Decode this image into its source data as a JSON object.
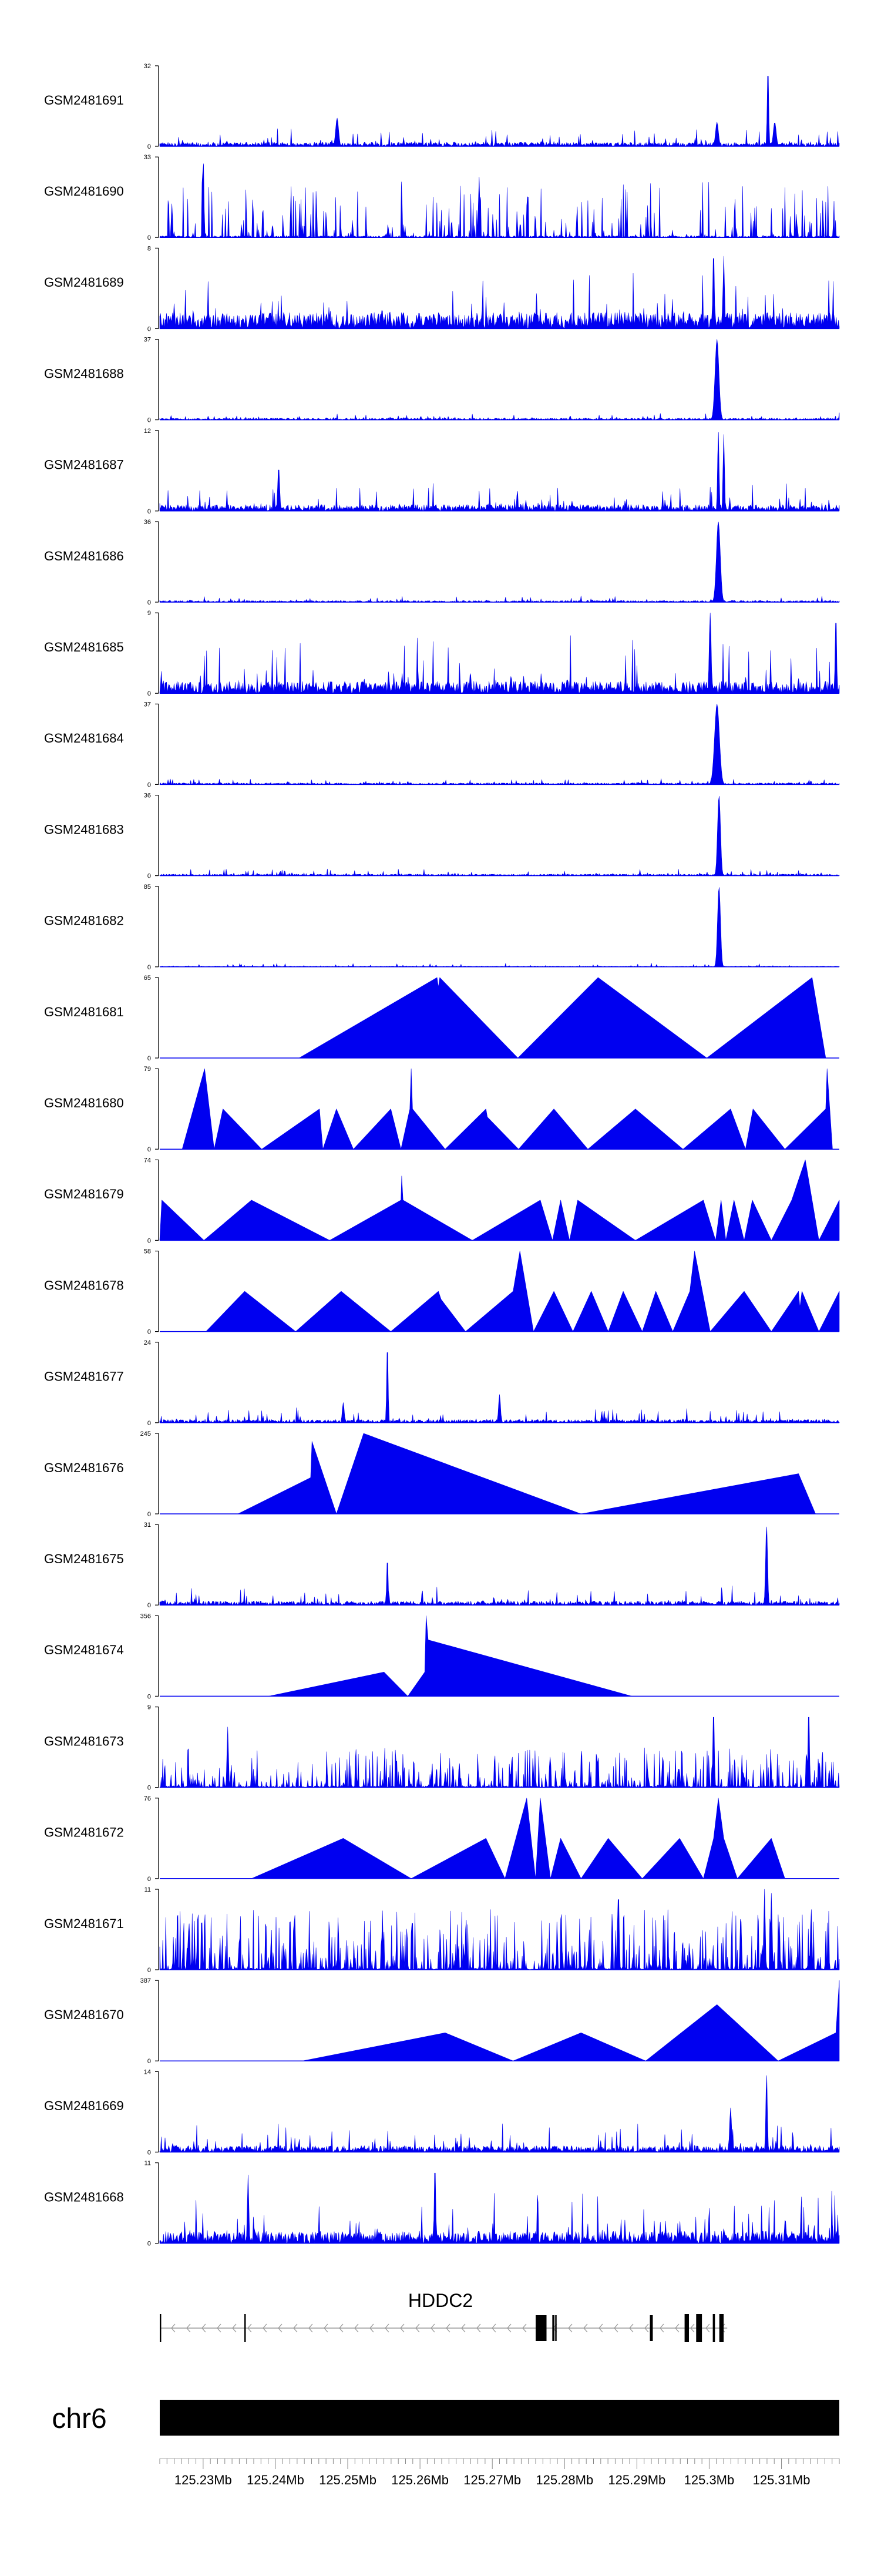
{
  "colors": {
    "signal": "#0000f0",
    "axis": "#000000",
    "background": "#ffffff"
  },
  "chart_data": {
    "type": "area",
    "title": "",
    "chromosome": "chr6",
    "gene": {
      "name": "HDDC2",
      "strand": "-"
    },
    "xlim": [
      125.224,
      125.318
    ],
    "xticks": [
      125.23,
      125.24,
      125.25,
      125.26,
      125.27,
      125.28,
      125.29,
      125.3,
      125.31
    ],
    "xtick_labels": [
      "125.23Mb",
      "125.24Mb",
      "125.25Mb",
      "125.26Mb",
      "125.27Mb",
      "125.28Mb",
      "125.29Mb",
      "125.3Mb",
      "125.31Mb"
    ],
    "tracks": [
      {
        "name": "GSM2481691",
        "ymax": 32,
        "pattern": "noise",
        "base": 0.05,
        "amp": 0.18,
        "peaks": [
          [
            0.261,
            0.35,
            0.003
          ],
          [
            0.82,
            0.3,
            0.003
          ],
          [
            0.895,
            1.0,
            0.0015
          ],
          [
            0.905,
            0.3,
            0.003
          ]
        ]
      },
      {
        "name": "GSM2481690",
        "ymax": 33,
        "pattern": "spiky",
        "density": 0.3,
        "amp": 0.7,
        "peaks": [
          [
            0.064,
            1.0,
            0.0015
          ],
          [
            0.47,
            0.75,
            0.0015
          ]
        ]
      },
      {
        "name": "GSM2481689",
        "ymax": 8,
        "pattern": "noise",
        "base": 0.2,
        "amp": 0.55,
        "peaks": [
          [
            0.815,
            1.0,
            0.0015
          ],
          [
            0.83,
            0.9,
            0.0015
          ]
        ]
      },
      {
        "name": "GSM2481688",
        "ymax": 37,
        "pattern": "noise",
        "base": 0.02,
        "amp": 0.07,
        "peaks": [
          [
            0.82,
            1.0,
            0.004
          ]
        ]
      },
      {
        "name": "GSM2481687",
        "ymax": 12,
        "pattern": "noise",
        "base": 0.08,
        "amp": 0.3,
        "peaks": [
          [
            0.822,
            1.0,
            0.0015
          ],
          [
            0.83,
            0.95,
            0.0015
          ],
          [
            0.175,
            0.55,
            0.002
          ]
        ]
      },
      {
        "name": "GSM2481686",
        "ymax": 36,
        "pattern": "noise",
        "base": 0.02,
        "amp": 0.06,
        "peaks": [
          [
            0.822,
            1.0,
            0.004
          ]
        ]
      },
      {
        "name": "GSM2481685",
        "ymax": 9,
        "pattern": "noise",
        "base": 0.15,
        "amp": 0.6,
        "peaks": [
          [
            0.81,
            1.0,
            0.002
          ],
          [
            0.995,
            1.0,
            0.0015
          ]
        ]
      },
      {
        "name": "GSM2481684",
        "ymax": 37,
        "pattern": "noise",
        "base": 0.02,
        "amp": 0.06,
        "peaks": [
          [
            0.82,
            1.0,
            0.005
          ]
        ]
      },
      {
        "name": "GSM2481683",
        "ymax": 36,
        "pattern": "noise",
        "base": 0.02,
        "amp": 0.08,
        "peaks": [
          [
            0.823,
            1.0,
            0.003
          ]
        ]
      },
      {
        "name": "GSM2481682",
        "ymax": 85,
        "pattern": "noise",
        "base": 0.01,
        "amp": 0.04,
        "peaks": [
          [
            0.823,
            1.0,
            0.003
          ]
        ]
      },
      {
        "name": "GSM2481681",
        "ymax": 65,
        "pattern": "points",
        "points": [
          [
            0.205,
            0
          ],
          [
            0.408,
            1.0
          ],
          [
            0.41,
            0.88
          ],
          [
            0.412,
            1.0
          ],
          [
            0.527,
            0
          ],
          [
            0.645,
            1.0
          ],
          [
            0.805,
            0
          ],
          [
            0.96,
            1.0
          ],
          [
            0.98,
            0
          ]
        ]
      },
      {
        "name": "GSM2481680",
        "ymax": 79,
        "pattern": "points",
        "points": [
          [
            0.033,
            0
          ],
          [
            0.066,
            1.0
          ],
          [
            0.08,
            0
          ],
          [
            0.093,
            0.5
          ],
          [
            0.15,
            0
          ],
          [
            0.235,
            0.5
          ],
          [
            0.24,
            0
          ],
          [
            0.26,
            0.5
          ],
          [
            0.285,
            0
          ],
          [
            0.34,
            0.5
          ],
          [
            0.355,
            0
          ],
          [
            0.368,
            0.5
          ],
          [
            0.37,
            1.0
          ],
          [
            0.372,
            0.5
          ],
          [
            0.42,
            0
          ],
          [
            0.48,
            0.5
          ],
          [
            0.482,
            0.4
          ],
          [
            0.528,
            0
          ],
          [
            0.58,
            0.5
          ],
          [
            0.63,
            0
          ],
          [
            0.7,
            0.5
          ],
          [
            0.77,
            0
          ],
          [
            0.84,
            0.5
          ],
          [
            0.862,
            0
          ],
          [
            0.873,
            0.5
          ],
          [
            0.92,
            0
          ],
          [
            0.98,
            0.5
          ],
          [
            0.982,
            1.0
          ],
          [
            0.99,
            0
          ]
        ]
      },
      {
        "name": "GSM2481679",
        "ymax": 74,
        "pattern": "points",
        "points": [
          [
            0,
            0
          ],
          [
            0.003,
            0.5
          ],
          [
            0.065,
            0
          ],
          [
            0.135,
            0.5
          ],
          [
            0.25,
            0
          ],
          [
            0.355,
            0.5
          ],
          [
            0.356,
            0.8
          ],
          [
            0.358,
            0.5
          ],
          [
            0.46,
            0
          ],
          [
            0.56,
            0.5
          ],
          [
            0.578,
            0
          ],
          [
            0.59,
            0.5
          ],
          [
            0.603,
            0
          ],
          [
            0.615,
            0.5
          ],
          [
            0.7,
            0
          ],
          [
            0.8,
            0.5
          ],
          [
            0.818,
            0
          ],
          [
            0.826,
            0.5
          ],
          [
            0.833,
            0
          ],
          [
            0.845,
            0.5
          ],
          [
            0.86,
            0
          ],
          [
            0.872,
            0.5
          ],
          [
            0.9,
            0
          ],
          [
            0.93,
            0.5
          ],
          [
            0.95,
            1.0
          ],
          [
            0.97,
            0
          ],
          [
            1.0,
            0.5
          ],
          [
            1.0,
            0
          ]
        ]
      },
      {
        "name": "GSM2481678",
        "ymax": 58,
        "pattern": "points",
        "points": [
          [
            0.068,
            0
          ],
          [
            0.125,
            0.5
          ],
          [
            0.2,
            0
          ],
          [
            0.267,
            0.5
          ],
          [
            0.34,
            0
          ],
          [
            0.41,
            0.5
          ],
          [
            0.414,
            0.4
          ],
          [
            0.45,
            0
          ],
          [
            0.52,
            0.5
          ],
          [
            0.53,
            1.0
          ],
          [
            0.55,
            0
          ],
          [
            0.58,
            0.5
          ],
          [
            0.608,
            0
          ],
          [
            0.635,
            0.5
          ],
          [
            0.66,
            0
          ],
          [
            0.682,
            0.5
          ],
          [
            0.71,
            0
          ],
          [
            0.73,
            0.5
          ],
          [
            0.755,
            0
          ],
          [
            0.78,
            0.5
          ],
          [
            0.787,
            1.0
          ],
          [
            0.81,
            0
          ],
          [
            0.86,
            0.5
          ],
          [
            0.9,
            0
          ],
          [
            0.94,
            0.5
          ],
          [
            0.942,
            0.3
          ],
          [
            0.945,
            0.5
          ],
          [
            0.97,
            0
          ],
          [
            1.0,
            0.5
          ],
          [
            1.0,
            0
          ]
        ]
      },
      {
        "name": "GSM2481677",
        "ymax": 24,
        "pattern": "noise",
        "base": 0.04,
        "amp": 0.15,
        "peaks": [
          [
            0.335,
            1.0,
            0.0015
          ],
          [
            0.27,
            0.25,
            0.002
          ],
          [
            0.5,
            0.35,
            0.002
          ]
        ]
      },
      {
        "name": "GSM2481676",
        "ymax": 245,
        "pattern": "points",
        "points": [
          [
            0.115,
            0
          ],
          [
            0.222,
            0.45
          ],
          [
            0.224,
            0.9
          ],
          [
            0.26,
            0
          ],
          [
            0.3,
            1.0
          ],
          [
            0.62,
            0
          ],
          [
            0.94,
            0.5
          ],
          [
            0.965,
            0
          ]
        ]
      },
      {
        "name": "GSM2481675",
        "ymax": 31,
        "pattern": "noise",
        "base": 0.05,
        "amp": 0.2,
        "peaks": [
          [
            0.893,
            1.0,
            0.002
          ],
          [
            0.335,
            0.6,
            0.0015
          ]
        ]
      },
      {
        "name": "GSM2481674",
        "ymax": 356,
        "pattern": "points",
        "points": [
          [
            0.16,
            0
          ],
          [
            0.33,
            0.3
          ],
          [
            0.365,
            0
          ],
          [
            0.39,
            0.3
          ],
          [
            0.392,
            1.0
          ],
          [
            0.395,
            0.7
          ],
          [
            0.695,
            0
          ]
        ]
      },
      {
        "name": "GSM2481673",
        "ymax": 9,
        "pattern": "spiky",
        "density": 0.5,
        "amp": 0.5,
        "peaks": [
          [
            0.815,
            1.0,
            0.0015
          ],
          [
            0.955,
            1.0,
            0.0015
          ],
          [
            0.1,
            0.75,
            0.0015
          ]
        ]
      },
      {
        "name": "GSM2481672",
        "ymax": 76,
        "pattern": "points",
        "points": [
          [
            0.135,
            0
          ],
          [
            0.27,
            0.5
          ],
          [
            0.37,
            0
          ],
          [
            0.48,
            0.5
          ],
          [
            0.508,
            0
          ],
          [
            0.54,
            1.0
          ],
          [
            0.553,
            0
          ],
          [
            0.56,
            1.0
          ],
          [
            0.575,
            0
          ],
          [
            0.59,
            0.5
          ],
          [
            0.62,
            0
          ],
          [
            0.66,
            0.5
          ],
          [
            0.71,
            0
          ],
          [
            0.765,
            0.5
          ],
          [
            0.8,
            0
          ],
          [
            0.815,
            0.5
          ],
          [
            0.822,
            1.0
          ],
          [
            0.83,
            0.5
          ],
          [
            0.85,
            0
          ],
          [
            0.9,
            0.5
          ],
          [
            0.92,
            0
          ]
        ]
      },
      {
        "name": "GSM2481671",
        "ymax": 11,
        "pattern": "spiky",
        "density": 0.6,
        "amp": 0.75,
        "peaks": [
          [
            0.675,
            1.0,
            0.0015
          ],
          [
            0.89,
            1.0,
            0.0015
          ],
          [
            0.9,
            0.95,
            0.0015
          ]
        ]
      },
      {
        "name": "GSM2481670",
        "ymax": 387,
        "pattern": "points",
        "points": [
          [
            0.21,
            0
          ],
          [
            0.42,
            0.35
          ],
          [
            0.52,
            0
          ],
          [
            0.62,
            0.35
          ],
          [
            0.715,
            0
          ],
          [
            0.82,
            0.7
          ],
          [
            0.91,
            0
          ],
          [
            0.995,
            0.35
          ],
          [
            1.0,
            1.0
          ],
          [
            1.0,
            0
          ]
        ]
      },
      {
        "name": "GSM2481669",
        "ymax": 14,
        "pattern": "noise",
        "base": 0.08,
        "amp": 0.3,
        "peaks": [
          [
            0.893,
            1.0,
            0.0015
          ],
          [
            0.84,
            0.55,
            0.002
          ]
        ]
      },
      {
        "name": "GSM2481668",
        "ymax": 11,
        "pattern": "noise",
        "base": 0.15,
        "amp": 0.55,
        "peaks": [
          [
            0.405,
            1.0,
            0.0015
          ],
          [
            0.13,
            0.85,
            0.0015
          ]
        ]
      }
    ],
    "gene_exons": [
      {
        "start": 125.3014,
        "end": 125.302,
        "kind": "line"
      },
      {
        "start": 125.2982,
        "end": 125.299,
        "kind": "line"
      },
      {
        "start": 125.3005,
        "end": 125.3008,
        "kind": "line"
      },
      {
        "start": 125.2966,
        "end": 125.2972,
        "kind": "line"
      },
      {
        "start": 125.2918,
        "end": 125.2922,
        "kind": "thick"
      },
      {
        "start": 125.276,
        "end": 125.2775,
        "kind": "thick"
      },
      {
        "start": 125.2783,
        "end": 125.2786,
        "kind": "thick"
      },
      {
        "start": 125.2787,
        "end": 125.2789,
        "kind": "thick"
      },
      {
        "start": 125.2357,
        "end": 125.2359,
        "kind": "line"
      },
      {
        "start": 125.224,
        "end": 125.2242,
        "kind": "line"
      }
    ],
    "gene_range": [
      125.224,
      125.3025
    ]
  }
}
